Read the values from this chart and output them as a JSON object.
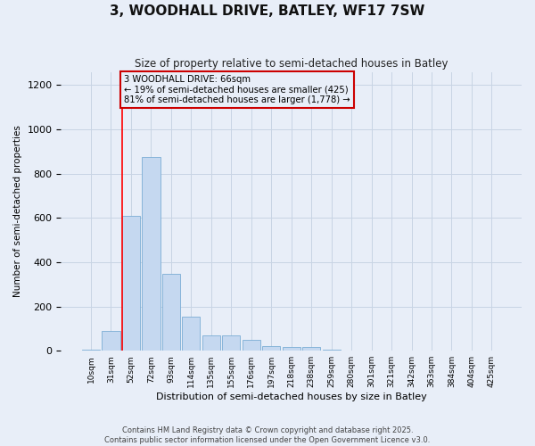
{
  "title": "3, WOODHALL DRIVE, BATLEY, WF17 7SW",
  "subtitle": "Size of property relative to semi-detached houses in Batley",
  "xlabel": "Distribution of semi-detached houses by size in Batley",
  "ylabel": "Number of semi-detached properties",
  "footer_line1": "Contains HM Land Registry data © Crown copyright and database right 2025.",
  "footer_line2": "Contains public sector information licensed under the Open Government Licence v3.0.",
  "categories": [
    "10sqm",
    "31sqm",
    "52sqm",
    "72sqm",
    "93sqm",
    "114sqm",
    "135sqm",
    "155sqm",
    "176sqm",
    "197sqm",
    "218sqm",
    "238sqm",
    "259sqm",
    "280sqm",
    "301sqm",
    "321sqm",
    "342sqm",
    "363sqm",
    "384sqm",
    "404sqm",
    "425sqm"
  ],
  "values": [
    5,
    90,
    608,
    875,
    348,
    155,
    68,
    68,
    48,
    22,
    18,
    18,
    5,
    0,
    0,
    0,
    0,
    0,
    0,
    0,
    0
  ],
  "bar_color": "#c5d8f0",
  "bar_edge_color": "#7aadd4",
  "grid_color": "#c8d4e4",
  "background_color": "#e8eef8",
  "annotation_box_color": "#cc0000",
  "annotation_text": "3 WOODHALL DRIVE: 66sqm\n← 19% of semi-detached houses are smaller (425)\n81% of semi-detached houses are larger (1,778) →",
  "red_line_index": 2,
  "ylim": [
    0,
    1260
  ],
  "yticks": [
    0,
    200,
    400,
    600,
    800,
    1000,
    1200
  ]
}
